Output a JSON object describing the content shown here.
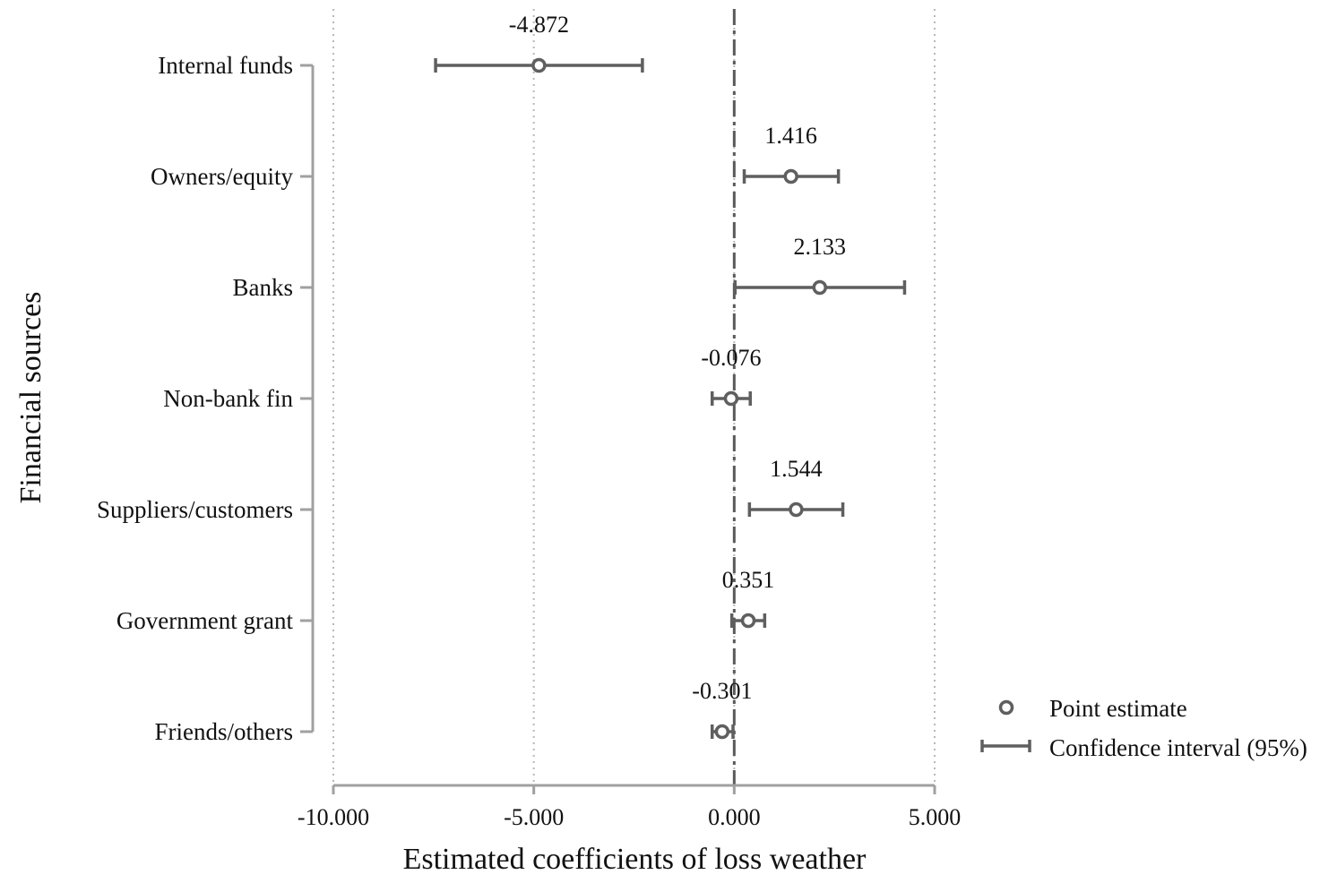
{
  "chart_data": {
    "type": "scatter",
    "subtype": "coefficient-plot",
    "xlabel": "Estimated coefficients of loss weather",
    "ylabel": "Financial sources",
    "xlim": [
      -10,
      5
    ],
    "xticks": [
      -10,
      -5,
      0,
      5
    ],
    "xtick_labels": [
      "-10.000",
      "-5.000",
      "0.000",
      "5.000"
    ],
    "reference_line": 0,
    "grid": "vertical dotted at x ticks",
    "legend_position": "bottom-right",
    "legend": {
      "point_label": "Point estimate",
      "ci_label": "Confidence interval (95%)"
    },
    "colors": {
      "marker": "#5f5f5f",
      "axis": "#a0a0a0",
      "grid": "#b8b8b8",
      "reference": "#5a5a5a"
    },
    "categories": [
      "Internal funds",
      "Owners/equity",
      "Banks",
      "Non-bank fin",
      "Suppliers/customers",
      "Government grant",
      "Friends/others"
    ],
    "estimates": [
      -4.872,
      1.416,
      2.133,
      -0.076,
      1.544,
      0.351,
      -0.301
    ],
    "estimate_labels": [
      "-4.872",
      "1.416",
      "2.133",
      "-0.076",
      "1.544",
      "0.351",
      "-0.301"
    ],
    "ci_low": [
      -7.45,
      0.25,
      0.02,
      -0.55,
      0.38,
      -0.06,
      -0.55
    ],
    "ci_high": [
      -2.29,
      2.6,
      4.25,
      0.4,
      2.71,
      0.76,
      -0.03
    ]
  }
}
